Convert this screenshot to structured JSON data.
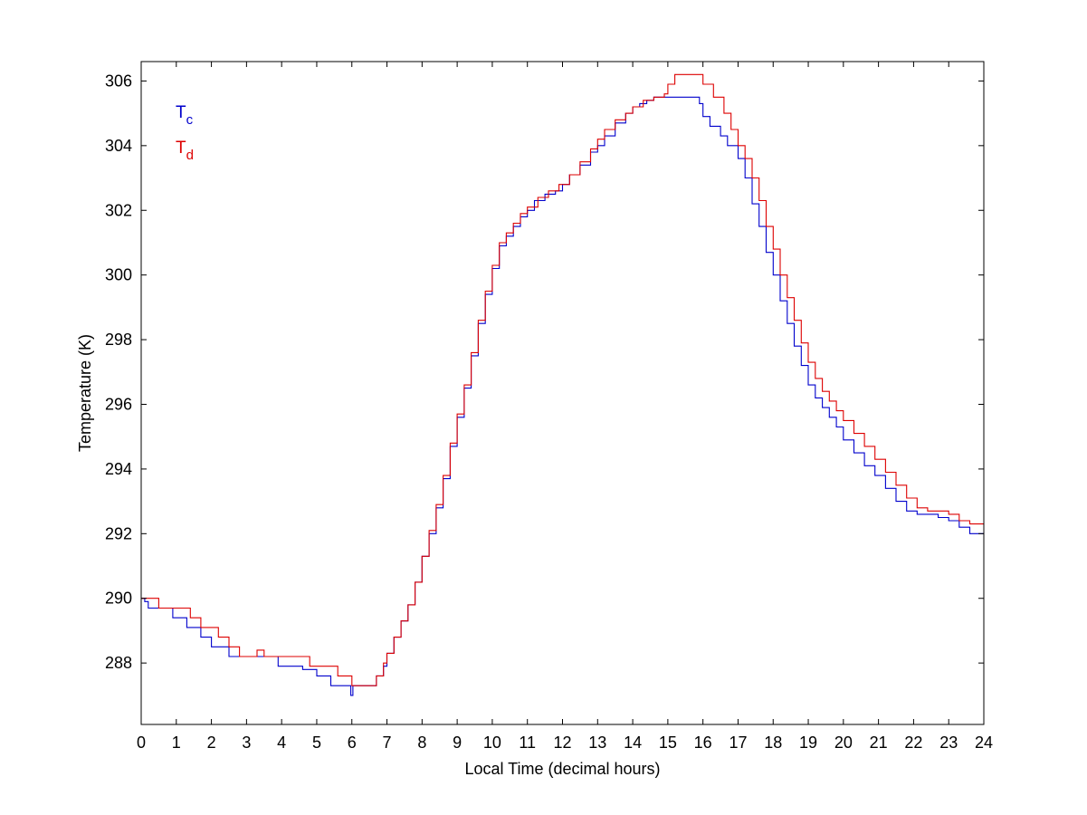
{
  "chart_data": {
    "type": "line",
    "xlabel": "Local Time (decimal hours)",
    "ylabel": "Temperature (K)",
    "xlim": [
      0,
      24
    ],
    "ylim": [
      286.1,
      306.6
    ],
    "xticks": [
      0,
      1,
      2,
      3,
      4,
      5,
      6,
      7,
      8,
      9,
      10,
      11,
      12,
      13,
      14,
      15,
      16,
      17,
      18,
      19,
      20,
      21,
      22,
      23,
      24
    ],
    "xtick_labels": [
      "0",
      "1",
      "2",
      "3",
      "4",
      "5",
      "6",
      "7",
      "8",
      "9",
      "10",
      "11",
      "12",
      "13",
      "14",
      "15",
      "16",
      "17",
      "18",
      "19",
      "20",
      "21",
      "22",
      "23",
      "24"
    ],
    "yticks": [
      288,
      290,
      292,
      294,
      296,
      298,
      300,
      302,
      304,
      306
    ],
    "ytick_labels": [
      "288",
      "290",
      "292",
      "294",
      "296",
      "298",
      "300",
      "302",
      "304",
      "306"
    ],
    "grid": false,
    "legend_position": "top-left",
    "series": [
      {
        "name_main": "T",
        "name_sub": "c",
        "color": "#0000cc",
        "step": true,
        "x": [
          0,
          0.1,
          0.2,
          0.6,
          0.9,
          1.3,
          1.7,
          2.0,
          2.5,
          2.8,
          3.2,
          3.6,
          3.9,
          4.5,
          4.6,
          4.7,
          5.0,
          5.4,
          5.6,
          5.9,
          5.97,
          6.03,
          6.1,
          6.5,
          6.7,
          6.9,
          7.0,
          7.2,
          7.4,
          7.6,
          7.8,
          8.0,
          8.2,
          8.4,
          8.6,
          8.8,
          9.0,
          9.2,
          9.4,
          9.6,
          9.8,
          10.0,
          10.2,
          10.4,
          10.6,
          10.8,
          11.0,
          11.2,
          11.5,
          11.8,
          12.0,
          12.2,
          12.5,
          12.8,
          13.0,
          13.2,
          13.5,
          13.8,
          14.0,
          14.2,
          14.4,
          14.6,
          14.8,
          15.0,
          15.3,
          15.6,
          15.9,
          16.0,
          16.2,
          16.5,
          16.7,
          17.0,
          17.2,
          17.4,
          17.6,
          17.8,
          18.0,
          18.2,
          18.4,
          18.6,
          18.8,
          19.0,
          19.2,
          19.4,
          19.6,
          19.8,
          20.0,
          20.3,
          20.6,
          20.9,
          21.2,
          21.5,
          21.8,
          22.1,
          22.4,
          22.7,
          23.0,
          23.3,
          23.6,
          23.8,
          24.0
        ],
        "y": [
          290.0,
          289.9,
          289.7,
          289.7,
          289.4,
          289.1,
          288.8,
          288.5,
          288.2,
          288.2,
          288.2,
          288.2,
          287.9,
          287.9,
          287.8,
          287.8,
          287.6,
          287.3,
          287.3,
          287.3,
          287.0,
          287.3,
          287.3,
          287.3,
          287.6,
          287.9,
          288.3,
          288.8,
          289.3,
          289.8,
          290.5,
          291.3,
          292.0,
          292.8,
          293.7,
          294.7,
          295.6,
          296.5,
          297.5,
          298.5,
          299.4,
          300.2,
          300.9,
          301.2,
          301.5,
          301.8,
          302.0,
          302.3,
          302.5,
          302.6,
          302.8,
          303.1,
          303.4,
          303.8,
          304.0,
          304.3,
          304.7,
          305.0,
          305.2,
          305.3,
          305.4,
          305.5,
          305.5,
          305.5,
          305.5,
          305.5,
          305.3,
          304.9,
          304.6,
          304.3,
          304.0,
          303.6,
          303.0,
          302.2,
          301.5,
          300.7,
          300.0,
          299.2,
          298.5,
          297.8,
          297.2,
          296.6,
          296.2,
          295.9,
          295.6,
          295.3,
          294.9,
          294.5,
          294.1,
          293.8,
          293.4,
          293.0,
          292.7,
          292.6,
          292.6,
          292.5,
          292.4,
          292.2,
          292.0,
          292.0,
          292.0
        ]
      },
      {
        "name_main": "T",
        "name_sub": "d",
        "color": "#dd0000",
        "step": true,
        "x": [
          0,
          0.5,
          0.9,
          1.4,
          1.7,
          2.2,
          2.5,
          2.8,
          3.3,
          3.5,
          3.7,
          4.5,
          4.8,
          5.2,
          5.6,
          6.0,
          6.5,
          6.7,
          6.9,
          7.0,
          7.2,
          7.4,
          7.6,
          7.8,
          8.0,
          8.2,
          8.4,
          8.6,
          8.8,
          9.0,
          9.2,
          9.4,
          9.6,
          9.8,
          10.0,
          10.2,
          10.4,
          10.6,
          10.8,
          11.0,
          11.3,
          11.6,
          11.9,
          12.2,
          12.5,
          12.8,
          13.0,
          13.2,
          13.5,
          13.8,
          14.0,
          14.3,
          14.6,
          14.9,
          15.0,
          15.2,
          15.5,
          15.8,
          16.0,
          16.3,
          16.6,
          16.8,
          17.0,
          17.2,
          17.4,
          17.6,
          17.8,
          18.0,
          18.2,
          18.4,
          18.6,
          18.8,
          19.0,
          19.2,
          19.4,
          19.6,
          19.8,
          20.0,
          20.3,
          20.6,
          20.9,
          21.2,
          21.5,
          21.8,
          22.1,
          22.4,
          22.7,
          23.0,
          23.3,
          23.6,
          23.8,
          24.0
        ],
        "y": [
          290.0,
          289.7,
          289.7,
          289.4,
          289.1,
          288.8,
          288.5,
          288.2,
          288.4,
          288.2,
          288.2,
          288.2,
          287.9,
          287.9,
          287.6,
          287.3,
          287.3,
          287.6,
          288.0,
          288.3,
          288.8,
          289.3,
          289.8,
          290.5,
          291.3,
          292.1,
          292.9,
          293.8,
          294.8,
          295.7,
          296.6,
          297.6,
          298.6,
          299.5,
          300.3,
          301.0,
          301.3,
          301.6,
          301.9,
          302.1,
          302.4,
          302.6,
          302.8,
          303.1,
          303.5,
          303.9,
          304.2,
          304.5,
          304.8,
          305.0,
          305.2,
          305.4,
          305.5,
          305.6,
          305.9,
          306.2,
          306.2,
          306.2,
          305.9,
          305.5,
          305.0,
          304.5,
          304.0,
          303.6,
          303.0,
          302.3,
          301.5,
          300.8,
          300.0,
          299.3,
          298.6,
          297.9,
          297.3,
          296.8,
          296.4,
          296.1,
          295.8,
          295.5,
          295.1,
          294.7,
          294.3,
          293.9,
          293.5,
          293.1,
          292.8,
          292.7,
          292.7,
          292.6,
          292.4,
          292.3,
          292.3,
          292.3
        ]
      }
    ]
  }
}
